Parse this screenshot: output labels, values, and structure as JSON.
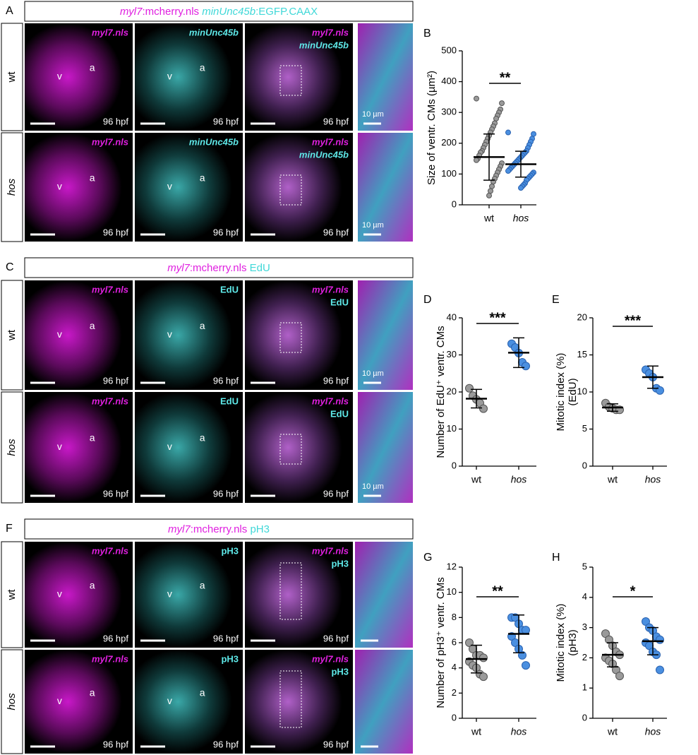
{
  "figure": {
    "sections": [
      {
        "letter": "A",
        "header": [
          {
            "text": "myl7",
            "italic": true,
            "color": "#e020e0"
          },
          {
            "text": ":mcherry.nls ",
            "italic": false,
            "color": "#e020e0"
          },
          {
            "text": "minUnc45b",
            "italic": true,
            "color": "#40d8d8"
          },
          {
            "text": ":EGFP.CAAX",
            "italic": false,
            "color": "#40d8d8"
          }
        ],
        "rows": [
          {
            "label": "wt",
            "images": [
              {
                "channels": [
                  "myl7.nls"
                ],
                "marks": [
                  "v",
                  "a"
                ],
                "time": "96 hpf"
              },
              {
                "channels": [
                  "minUnc45b"
                ],
                "marks": [
                  "v",
                  "a"
                ],
                "time": "96 hpf"
              },
              {
                "channels": [
                  "myl7.nls",
                  "minUnc45b"
                ],
                "time": "96 hpf"
              },
              {
                "scale": "10 µm"
              }
            ]
          },
          {
            "label": "hos",
            "images": [
              {
                "channels": [
                  "myl7.nls"
                ],
                "marks": [
                  "v",
                  "a"
                ],
                "time": "96 hpf"
              },
              {
                "channels": [
                  "minUnc45b"
                ],
                "marks": [
                  "v",
                  "a"
                ],
                "time": "96 hpf"
              },
              {
                "channels": [
                  "myl7.nls",
                  "minUnc45b"
                ],
                "time": "96 hpf"
              },
              {
                "scale": "10 µm"
              }
            ]
          }
        ]
      },
      {
        "letter": "C",
        "header": [
          {
            "text": "myl7",
            "italic": true,
            "color": "#e020e0"
          },
          {
            "text": ":mcherry.nls ",
            "italic": false,
            "color": "#e020e0"
          },
          {
            "text": "EdU",
            "italic": false,
            "color": "#40d8d8"
          }
        ],
        "rows": [
          {
            "label": "wt",
            "images": [
              {
                "channels": [
                  "myl7.nls"
                ],
                "marks": [
                  "v",
                  "a"
                ],
                "time": "96 hpf"
              },
              {
                "channels": [
                  "EdU"
                ],
                "marks": [
                  "v",
                  "a"
                ],
                "time": "96 hpf"
              },
              {
                "channels": [
                  "myl7.nls",
                  "EdU"
                ],
                "time": "96 hpf"
              },
              {
                "scale": "10 µm"
              }
            ]
          },
          {
            "label": "hos",
            "images": [
              {
                "channels": [
                  "myl7.nls"
                ],
                "marks": [
                  "v",
                  "a"
                ],
                "time": "96 hpf"
              },
              {
                "channels": [
                  "EdU"
                ],
                "marks": [
                  "v",
                  "a"
                ],
                "time": "96 hpf"
              },
              {
                "channels": [
                  "myl7.nls",
                  "EdU"
                ],
                "time": "96 hpf"
              },
              {
                "scale": "10 µm"
              }
            ]
          }
        ]
      },
      {
        "letter": "F",
        "header": [
          {
            "text": "myl7",
            "italic": true,
            "color": "#e020e0"
          },
          {
            "text": ":mcherry.nls ",
            "italic": false,
            "color": "#e020e0"
          },
          {
            "text": "pH3",
            "italic": false,
            "color": "#40d8d8"
          }
        ],
        "rows": [
          {
            "label": "wt",
            "images": [
              {
                "channels": [
                  "myl7.nls"
                ],
                "marks": [
                  "v",
                  "a"
                ],
                "time": "96 hpf"
              },
              {
                "channels": [
                  "pH3"
                ],
                "marks": [
                  "v",
                  "a"
                ],
                "time": "96 hpf"
              },
              {
                "channels": [
                  "myl7.nls",
                  "pH3"
                ],
                "time": "96 hpf"
              },
              {}
            ]
          },
          {
            "label": "hos",
            "images": [
              {
                "channels": [
                  "myl7.nls"
                ],
                "marks": [
                  "v",
                  "a"
                ],
                "time": "96 hpf"
              },
              {
                "channels": [
                  "pH3"
                ],
                "marks": [
                  "v",
                  "a"
                ],
                "time": "96 hpf"
              },
              {
                "channels": [
                  "myl7.nls",
                  "pH3"
                ],
                "time": "96 hpf"
              },
              {}
            ]
          }
        ]
      }
    ]
  },
  "chart_data": [
    {
      "type": "strip",
      "letter": "B",
      "ylabel": [
        "Size of ventr. CMs (µm²)"
      ],
      "categories": [
        "wt",
        "hos"
      ],
      "colors": [
        "#9a9a9a",
        "#4a8fe0"
      ],
      "values": [
        [
          345,
          330,
          310,
          300,
          290,
          280,
          265,
          255,
          245,
          235,
          225,
          215,
          205,
          195,
          185,
          175,
          170,
          160,
          150,
          145,
          135,
          125,
          115,
          105,
          95,
          85,
          75,
          60,
          45,
          30
        ],
        [
          235,
          230,
          215,
          205,
          195,
          185,
          175,
          170,
          165,
          160,
          155,
          150,
          145,
          140,
          135,
          130,
          125,
          120,
          115,
          110,
          105,
          100,
          95,
          90,
          85,
          80,
          70,
          65,
          60,
          55
        ]
      ],
      "means": [
        155,
        132
      ],
      "sd": [
        75,
        42
      ],
      "significance": "**",
      "ylim": [
        0,
        500
      ],
      "yticks": [
        0,
        100,
        200,
        300,
        400,
        500
      ]
    },
    {
      "type": "strip",
      "letter": "D",
      "ylabel": [
        "Number of EdU⁺ ventr. CMs"
      ],
      "categories": [
        "wt",
        "hos"
      ],
      "colors": [
        "#9a9a9a",
        "#4a8fe0"
      ],
      "values": [
        [
          21,
          19,
          18,
          17,
          15.5
        ],
        [
          33,
          32,
          30.5,
          28,
          27
        ]
      ],
      "means": [
        18.2,
        30.6
      ],
      "sd": [
        2.5,
        4
      ],
      "significance": "***",
      "ylim": [
        0,
        40
      ],
      "yticks": [
        0,
        10,
        20,
        30,
        40
      ]
    },
    {
      "type": "strip",
      "letter": "E",
      "ylabel": [
        "Mitotic index (%)",
        "(EdU)"
      ],
      "categories": [
        "wt",
        "hos"
      ],
      "colors": [
        "#9a9a9a",
        "#4a8fe0"
      ],
      "values": [
        [
          8.5,
          8,
          7.8,
          7.6,
          7.6
        ],
        [
          13,
          12.5,
          12,
          10.5,
          10.2
        ]
      ],
      "means": [
        7.9,
        12
      ],
      "sd": [
        0.5,
        1.5
      ],
      "significance": "***",
      "ylim": [
        0,
        20
      ],
      "yticks": [
        0,
        5,
        10,
        15,
        20
      ]
    },
    {
      "type": "strip",
      "letter": "G",
      "ylabel": [
        "Number of pH3⁺ ventr. CMs"
      ],
      "categories": [
        "wt",
        "hos"
      ],
      "colors": [
        "#9a9a9a",
        "#4a8fe0"
      ],
      "values": [
        [
          6,
          5.5,
          5,
          5,
          4.8,
          4.5,
          4.2,
          4,
          3.5,
          3.3
        ],
        [
          8,
          8,
          7.5,
          7,
          7,
          6.5,
          6,
          5.5,
          5,
          4.2
        ]
      ],
      "means": [
        4.7,
        6.7
      ],
      "sd": [
        1.1,
        1.5
      ],
      "significance": "**",
      "ylim": [
        0,
        12
      ],
      "yticks": [
        0,
        2,
        4,
        6,
        8,
        10,
        12
      ]
    },
    {
      "type": "strip",
      "letter": "H",
      "ylabel": [
        "Mitotic index (%)",
        "(pH3)"
      ],
      "categories": [
        "wt",
        "hos"
      ],
      "colors": [
        "#9a9a9a",
        "#4a8fe0"
      ],
      "values": [
        [
          2.8,
          2.6,
          2.4,
          2.2,
          2.1,
          2.0,
          1.9,
          1.8,
          1.6,
          1.4
        ],
        [
          3.2,
          3.0,
          2.9,
          2.7,
          2.6,
          2.5,
          2.4,
          2.2,
          2.1,
          1.6
        ]
      ],
      "means": [
        2.1,
        2.55
      ],
      "sd": [
        0.4,
        0.45
      ],
      "significance": "*",
      "ylim": [
        0,
        5
      ],
      "yticks": [
        0,
        1,
        2,
        3,
        4,
        5
      ]
    }
  ]
}
